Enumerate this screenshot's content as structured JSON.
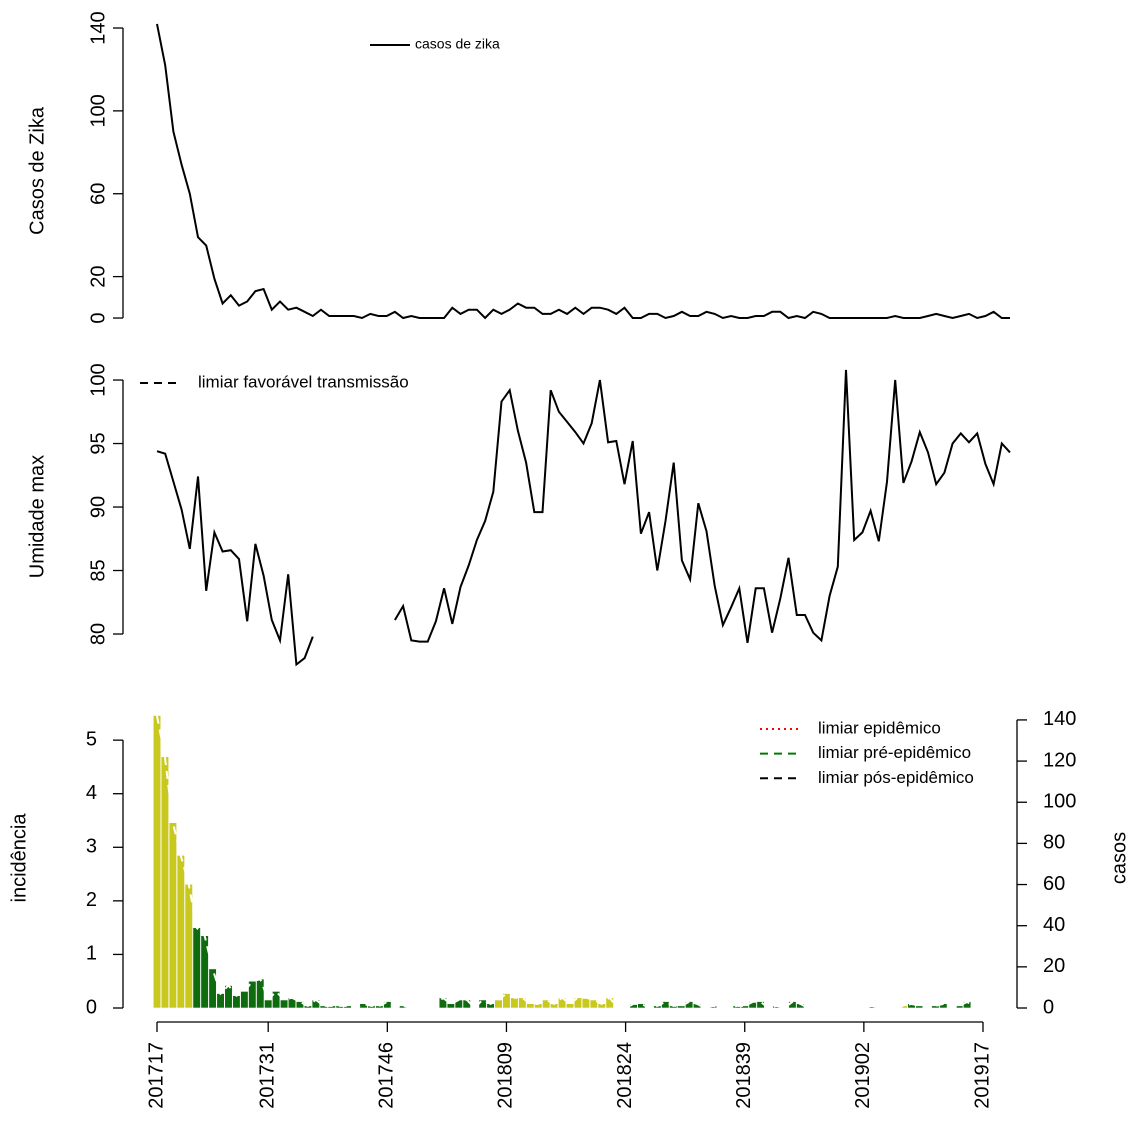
{
  "chart_data": [
    {
      "type": "line",
      "ylabel": "Casos de Zika",
      "xlim": [
        0,
        104
      ],
      "ylim": [
        -5.68,
        147.68
      ],
      "yticks": [
        0,
        20,
        60,
        100,
        140
      ],
      "legend_position": "top",
      "series": [
        {
          "name": "casos de zika",
          "color": "#000000",
          "linestyle": "solid",
          "values": [
            142,
            122,
            90,
            74,
            60,
            39,
            35,
            19,
            7,
            11,
            6,
            8,
            13,
            14,
            4,
            8,
            4,
            5,
            3,
            1,
            4,
            1,
            1,
            1,
            1,
            0,
            2,
            1,
            1,
            3,
            0,
            1,
            0,
            0,
            0,
            0,
            5,
            2,
            4,
            4,
            0,
            4,
            2,
            4,
            7,
            5,
            5,
            2,
            2,
            4,
            2,
            5,
            2,
            5,
            5,
            4,
            2,
            5,
            0,
            0,
            2,
            2,
            0,
            1,
            3,
            1,
            1,
            3,
            2,
            0,
            1,
            0,
            0,
            1,
            1,
            3,
            3,
            0,
            1,
            0,
            3,
            2,
            0,
            0,
            0,
            0,
            0,
            0,
            0,
            0,
            1,
            0,
            0,
            0,
            1,
            2,
            1,
            0,
            1,
            2,
            0,
            1,
            3,
            0,
            0
          ]
        }
      ]
    },
    {
      "type": "line",
      "ylabel": "Umidade max",
      "xlim": [
        0,
        104
      ],
      "ylim": [
        77.3,
        101.2
      ],
      "yticks": [
        80,
        85,
        90,
        95,
        100
      ],
      "legend_position": "topleft",
      "legend": [
        {
          "name": "limiar favorável transmissão",
          "color": "#000000",
          "linestyle": "dashed"
        }
      ],
      "series": [
        {
          "color": "#000000",
          "linestyle": "solid",
          "values": [
            94.4,
            94.2,
            92,
            89.8,
            86.7,
            92.4,
            83.4,
            88,
            86.5,
            86.6,
            85.9,
            81,
            87.1,
            84.6,
            81.1,
            79.5,
            84.7,
            77.6,
            78.1,
            79.8,
            null,
            null,
            null,
            null,
            null,
            null,
            null,
            null,
            null,
            81.1,
            82.2,
            79.5,
            79.4,
            79.4,
            81,
            83.6,
            80.8,
            83.7,
            85.4,
            87.4,
            88.9,
            91.2,
            98.3,
            99.2,
            96,
            93.5,
            89.6,
            89.6,
            99.2,
            97.5,
            96.7,
            95.9,
            95,
            96.6,
            100,
            95.1,
            95.2,
            91.8,
            95.2,
            87.9,
            89.6,
            85,
            88.9,
            93.5,
            85.8,
            84.3,
            90.3,
            88.1,
            83.8,
            80.7,
            82.1,
            83.6,
            79.3,
            83.6,
            83.6,
            80.1,
            82.8,
            86,
            81.5,
            81.5,
            80.1,
            79.5,
            83,
            85.3,
            100.8,
            87.4,
            88,
            89.7,
            87.3,
            92,
            100,
            91.9,
            93.6,
            95.9,
            94.3,
            91.8,
            92.7,
            95,
            95.8,
            95.1,
            95.8,
            93.4,
            91.8,
            95,
            94.3
          ]
        }
      ]
    },
    {
      "type": "bar",
      "ylabel": "incidência",
      "y2label": "casos",
      "y2color": "#aaaaaa",
      "xlim": [
        0,
        104
      ],
      "xticks": [
        {
          "value": 0,
          "label": "201717"
        },
        {
          "value": 14,
          "label": "201731"
        },
        {
          "value": 29,
          "label": "201746"
        },
        {
          "value": 44,
          "label": "201809"
        },
        {
          "value": 59,
          "label": "201824"
        },
        {
          "value": 74,
          "label": "201839"
        },
        {
          "value": 89,
          "label": "201902"
        },
        {
          "value": 104,
          "label": "201917"
        }
      ],
      "ylim": [
        0,
        5.6
      ],
      "yticks": [
        0,
        1,
        2,
        3,
        4,
        5
      ],
      "y2lim": [
        0,
        145.8
      ],
      "y2ticks": [
        0,
        20,
        40,
        60,
        80,
        100,
        120,
        140
      ],
      "legend_position": "topright",
      "legend": [
        {
          "name": "limiar epidêmico",
          "color": "#ff0000",
          "linestyle": "dotted"
        },
        {
          "name": "limiar pré-epidêmico",
          "color": "#007a00",
          "linestyle": "dashed"
        },
        {
          "name": "limiar pós-epidêmico",
          "color": "#000000",
          "linestyle": "dashed"
        }
      ],
      "series": [
        {
          "colors": [
            "#c8c81e",
            "#c8c81e",
            "#c8c81e",
            "#c8c81e",
            "#c8c81e",
            "#0e6b0e",
            "#0e6b0e",
            "#0e6b0e",
            "#0e6b0e",
            "#0e6b0e",
            "#0e6b0e",
            "#0e6b0e",
            "#0e6b0e",
            "#0e6b0e",
            "#0e6b0e",
            "#0e6b0e",
            "#0e6b0e",
            "#0e6b0e",
            "#0e6b0e",
            "#0e6b0e",
            "#0e6b0e",
            "#0e6b0e",
            "#0e6b0e",
            "#0e6b0e",
            "#0e6b0e",
            "#0e6b0e",
            "#0e6b0e",
            "#0e6b0e",
            "#0e6b0e",
            "#0e6b0e",
            "#0e6b0e",
            "#0e6b0e",
            "#0e6b0e",
            "#0e6b0e",
            "#0e6b0e",
            "#0e6b0e",
            "#0e6b0e",
            "#0e6b0e",
            "#0e6b0e",
            "#0e6b0e",
            "#0e6b0e",
            "#0e6b0e",
            "#0e6b0e",
            "#c8c81e",
            "#c8c81e",
            "#c8c81e",
            "#c8c81e",
            "#c8c81e",
            "#c8c81e",
            "#c8c81e",
            "#c8c81e",
            "#c8c81e",
            "#c8c81e",
            "#c8c81e",
            "#c8c81e",
            "#c8c81e",
            "#c8c81e",
            "#c8c81e",
            "#c8c81e",
            "#0e6b0e",
            "#0e6b0e",
            "#0e6b0e",
            "#0e6b0e",
            "#0e6b0e",
            "#0e6b0e",
            "#0e6b0e",
            "#0e6b0e",
            "#0e6b0e",
            "#0e6b0e",
            "#0e6b0e",
            "#0e6b0e",
            "#0e6b0e",
            "#0e6b0e",
            "#0e6b0e",
            "#0e6b0e",
            "#0e6b0e",
            "#0e6b0e",
            "#0e6b0e",
            "#0e6b0e",
            "#0e6b0e",
            "#0e6b0e",
            "#0e6b0e",
            "#0e6b0e",
            "#0e6b0e",
            "#0e6b0e",
            "#0e6b0e",
            "#0e6b0e",
            "#0e6b0e",
            "#0e6b0e",
            "#0e6b0e",
            "#0e6b0e",
            "#0e6b0e",
            "#0e6b0e",
            "#0e6b0e",
            "#c8c81e",
            "#0e6b0e",
            "#0e6b0e",
            "#0e6b0e",
            "#0e6b0e",
            "#0e6b0e",
            "#0e6b0e",
            "#0e6b0e",
            "#0e6b0e",
            "#0e6b0e",
            "#0e6b0e"
          ],
          "values": [
            5.46,
            4.69,
            3.46,
            2.85,
            2.31,
            1.5,
            1.35,
            0.73,
            0.27,
            0.42,
            0.23,
            0.31,
            0.5,
            0.54,
            0.15,
            0.31,
            0.15,
            0.19,
            0.12,
            0.04,
            0.15,
            0.04,
            0.04,
            0.04,
            0.04,
            0,
            0.08,
            0.04,
            0.04,
            0.12,
            0,
            0.04,
            0,
            0,
            0,
            0,
            0.19,
            0.08,
            0.15,
            0.15,
            0,
            0.15,
            0.08,
            0.15,
            0.27,
            0.19,
            0.19,
            0.08,
            0.08,
            0.15,
            0.08,
            0.19,
            0.08,
            0.19,
            0.19,
            0.15,
            0.08,
            0.19,
            0,
            0,
            0.08,
            0.08,
            0,
            0.04,
            0.12,
            0.04,
            0.04,
            0.12,
            0.08,
            0,
            0.04,
            0,
            0,
            0.04,
            0.04,
            0.12,
            0.12,
            0,
            0.04,
            0,
            0.12,
            0.08,
            0,
            0,
            0,
            0,
            0,
            0,
            0,
            0,
            0.04,
            0,
            0,
            0,
            0.04,
            0.08,
            0.04,
            0,
            0.04,
            0.08,
            0,
            0.04,
            0.12,
            0,
            0
          ]
        },
        {
          "axis": "y2",
          "color": "#ffffff",
          "linestyle": "dashed",
          "values": [
            142,
            122,
            90,
            74,
            60,
            39,
            35,
            19,
            7,
            11,
            6,
            8,
            13,
            14,
            4,
            8,
            4,
            5,
            3,
            1,
            4,
            1,
            1,
            1,
            1,
            0,
            2,
            1,
            1,
            3,
            0,
            1,
            0,
            0,
            0,
            0,
            5,
            2,
            4,
            4,
            0,
            4,
            2,
            4,
            7,
            5,
            5,
            2,
            2,
            4,
            2,
            5,
            2,
            5,
            5,
            4,
            2,
            5,
            0,
            0,
            2,
            2,
            0,
            1,
            3,
            1,
            1,
            3,
            2,
            0,
            1,
            0,
            0,
            1,
            1,
            3,
            3,
            0,
            1,
            0,
            3,
            2,
            0,
            0,
            0,
            0,
            0,
            0,
            0,
            0,
            1,
            0,
            0,
            0,
            1,
            2,
            1,
            0,
            1,
            2,
            0,
            1,
            3,
            0,
            0
          ]
        }
      ]
    }
  ]
}
